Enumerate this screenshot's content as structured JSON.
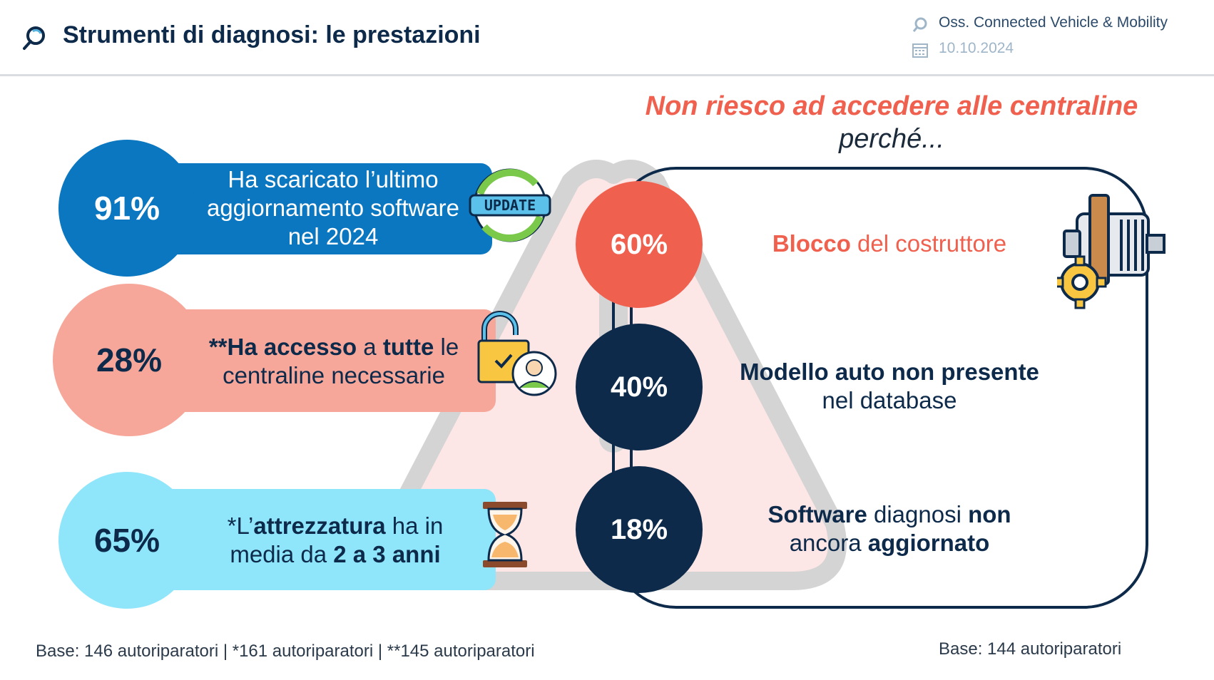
{
  "header": {
    "title": "Strumenti di diagnosi: le prestazioni",
    "source": "Oss. Connected Vehicle & Mobility",
    "date": "10.10.2024"
  },
  "colors": {
    "navy": "#0d2a4a",
    "blue": "#0b77c0",
    "salmon": "#f7a79a",
    "lightblue": "#8fe6fb",
    "coral": "#f0604f"
  },
  "left_items": [
    {
      "pct": "91%",
      "text": "Ha scaricato l’ultimo aggiornamento software nel 2024",
      "icon": "update-icon"
    },
    {
      "pct": "28%",
      "text_parts": [
        "**Ha accesso",
        " a ",
        "tutte",
        " le centraline necessarie"
      ],
      "icon": "unlocked-padlock-user-icon"
    },
    {
      "pct": "65%",
      "text_parts": [
        "*L’",
        "attrezzatura",
        " ha in media da ",
        "2 a 3 anni"
      ],
      "icon": "hourglass-icon"
    }
  ],
  "right": {
    "title": "Non riesco ad accedere alle centraline",
    "subtitle": "perché...",
    "reasons": [
      {
        "pct": "60%",
        "parts": [
          "Blocco",
          " del costruttore"
        ]
      },
      {
        "pct": "40%",
        "parts": [
          "Modello auto non presente",
          "nel database"
        ]
      },
      {
        "pct": "18%",
        "parts": [
          "Software",
          " diagnosi ",
          "non",
          "ancora ",
          "aggiornato"
        ]
      }
    ],
    "icon": "engine-gear-icon"
  },
  "footer": {
    "left": "Base: 146 autoriparatori | *161 autoriparatori | **145 autoriparatori",
    "right": "Base: 144 autoriparatori"
  }
}
